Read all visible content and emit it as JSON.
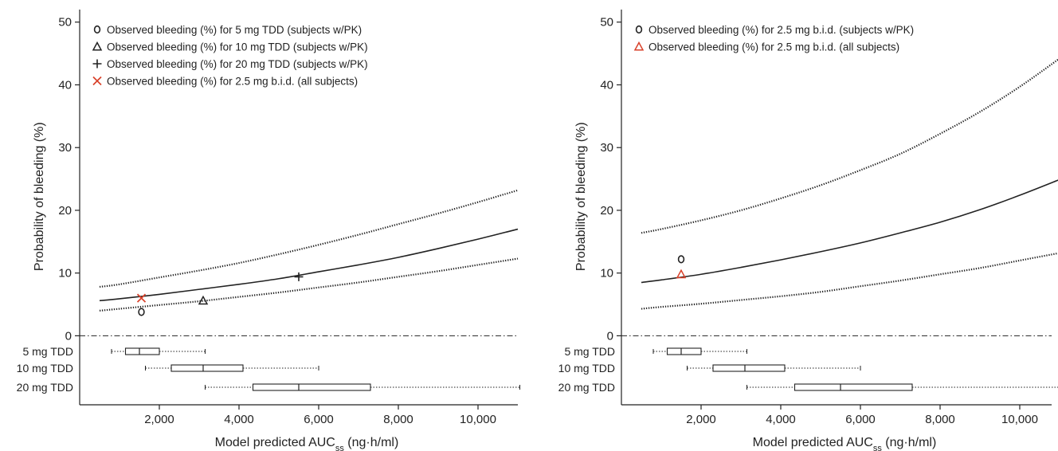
{
  "chart_data": [
    {
      "type": "line",
      "panel": "left",
      "xlabel": "Model predicted AUC",
      "xlabel_sub": "ss",
      "xlabel_unit": " (ng·h/ml)",
      "ylabel": "Probability of bleeding (%)",
      "xlim": [
        0,
        11200
      ],
      "ylim": [
        -11,
        52
      ],
      "x_ticks": [
        2000,
        4000,
        6000,
        8000,
        10000
      ],
      "x_tick_labels": [
        "2,000",
        "4,000",
        "6,000",
        "8,000",
        "10,000"
      ],
      "y_ticks": [
        0,
        10,
        20,
        30,
        40,
        50
      ],
      "y_tick_labels": [
        "0",
        "10",
        "20",
        "30",
        "40",
        "50"
      ],
      "curves": {
        "x": [
          500,
          1000,
          2000,
          3000,
          4000,
          5000,
          6000,
          7000,
          8000,
          9000,
          10000,
          11000
        ],
        "median": [
          5.6,
          5.9,
          6.6,
          7.4,
          8.2,
          9.1,
          10.2,
          11.3,
          12.5,
          13.9,
          15.4,
          17.0
        ],
        "upper": [
          7.8,
          8.2,
          9.3,
          10.4,
          11.6,
          13.0,
          14.5,
          16.1,
          17.8,
          19.5,
          21.3,
          23.2
        ],
        "lower": [
          4.0,
          4.3,
          4.9,
          5.5,
          6.2,
          6.9,
          7.7,
          8.5,
          9.4,
          10.3,
          11.3,
          12.3
        ]
      },
      "observed": [
        {
          "marker": "circle",
          "color": "#222222",
          "x": 1550,
          "y": 3.8,
          "label": "Observed bleeding (%) for 5 mg TDD (subjects w/PK)"
        },
        {
          "marker": "triangle",
          "color": "#222222",
          "x": 3100,
          "y": 5.6,
          "label": "Observed bleeding (%) for 10 mg TDD (subjects w/PK)"
        },
        {
          "marker": "plus",
          "color": "#222222",
          "x": 5500,
          "y": 9.4,
          "label": "Observed bleeding (%) for 20 mg TDD (subjects w/PK)"
        },
        {
          "marker": "cross",
          "color": "#d9422b",
          "x": 1550,
          "y": 6.0,
          "label": "Observed bleeding (%) for 2.5 mg b.i.d. (all subjects)"
        }
      ],
      "boxplots": [
        {
          "label": "5 mg TDD",
          "min": 800,
          "q1": 1150,
          "median": 1500,
          "q3": 2000,
          "max": 3150
        },
        {
          "label": "10 mg TDD",
          "min": 1650,
          "q1": 2300,
          "median": 3100,
          "q3": 4100,
          "max": 6000
        },
        {
          "label": "20 mg TDD",
          "min": 3150,
          "q1": 4350,
          "median": 5500,
          "q3": 7300,
          "max": 11050
        }
      ]
    },
    {
      "type": "line",
      "panel": "right",
      "xlabel": "Model predicted AUC",
      "xlabel_sub": "ss",
      "xlabel_unit": " (ng·h/ml)",
      "ylabel": "Probability of bleeding (%)",
      "xlim": [
        0,
        11200
      ],
      "ylim": [
        -11,
        52
      ],
      "x_ticks": [
        2000,
        4000,
        6000,
        8000,
        10000
      ],
      "x_tick_labels": [
        "2,000",
        "4,000",
        "6,000",
        "8,000",
        "10,000"
      ],
      "y_ticks": [
        0,
        10,
        20,
        30,
        40,
        50
      ],
      "y_tick_labels": [
        "0",
        "10",
        "20",
        "30",
        "40",
        "50"
      ],
      "curves": {
        "x": [
          500,
          1000,
          2000,
          3000,
          4000,
          5000,
          6000,
          7000,
          8000,
          9000,
          10000,
          11000
        ],
        "median": [
          8.5,
          8.9,
          9.8,
          10.9,
          12.1,
          13.4,
          14.8,
          16.4,
          18.1,
          20.1,
          22.4,
          24.9
        ],
        "upper": [
          16.4,
          17.0,
          18.4,
          20.0,
          21.9,
          24.0,
          26.4,
          29.0,
          32.2,
          35.7,
          39.7,
          44.2
        ],
        "lower": [
          4.3,
          4.6,
          5.1,
          5.7,
          6.3,
          7.0,
          7.9,
          8.8,
          9.8,
          10.8,
          12.0,
          13.2
        ]
      },
      "observed": [
        {
          "marker": "circle",
          "color": "#222222",
          "x": 1500,
          "y": 12.2,
          "label": "Observed bleeding (%) for 2.5 mg b.i.d. (subjects w/PK)"
        },
        {
          "marker": "triangle",
          "color": "#d9422b",
          "x": 1500,
          "y": 9.8,
          "label": "Observed bleeding (%) for 2.5 mg b.i.d. (all subjects)"
        }
      ],
      "boxplots": [
        {
          "label": "5 mg TDD",
          "min": 800,
          "q1": 1150,
          "median": 1500,
          "q3": 2000,
          "max": 3150
        },
        {
          "label": "10 mg TDD",
          "min": 1650,
          "q1": 2300,
          "median": 3100,
          "q3": 4100,
          "max": 6000
        },
        {
          "label": "20 mg TDD",
          "min": 3150,
          "q1": 4350,
          "median": 5500,
          "q3": 7300,
          "max": 11050
        }
      ]
    }
  ]
}
